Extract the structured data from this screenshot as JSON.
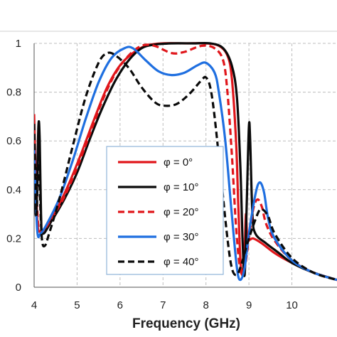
{
  "chart_data": {
    "type": "line",
    "title": "",
    "xlabel": "Frequency (GHz)",
    "ylabel": "",
    "xlim": [
      4,
      11.05
    ],
    "ylim": [
      0,
      1.0
    ],
    "xticks": [
      "4",
      "5",
      "6",
      "7",
      "8",
      "9",
      "10"
    ],
    "yticks": [
      "0",
      "0.2",
      "0.4",
      "0.6",
      "0.8",
      "1"
    ],
    "grid": true,
    "legend_placement": "center",
    "series": [
      {
        "name": "φ =  0°",
        "color": "#e0161b",
        "dash": "solid",
        "points": [
          [
            4.0,
            0.71
          ],
          [
            4.03,
            0.5
          ],
          [
            4.08,
            0.26
          ],
          [
            4.15,
            0.23
          ],
          [
            4.3,
            0.25
          ],
          [
            4.5,
            0.31
          ],
          [
            4.8,
            0.42
          ],
          [
            5.1,
            0.55
          ],
          [
            5.4,
            0.69
          ],
          [
            5.7,
            0.82
          ],
          [
            6.0,
            0.91
          ],
          [
            6.3,
            0.96
          ],
          [
            6.6,
            0.99
          ],
          [
            7.0,
            1.0
          ],
          [
            7.5,
            1.0
          ],
          [
            8.0,
            1.0
          ],
          [
            8.3,
            0.99
          ],
          [
            8.5,
            0.95
          ],
          [
            8.6,
            0.86
          ],
          [
            8.7,
            0.6
          ],
          [
            8.75,
            0.35
          ],
          [
            8.8,
            0.12
          ],
          [
            8.85,
            0.05
          ],
          [
            8.9,
            0.15
          ],
          [
            8.93,
            0.3
          ],
          [
            8.97,
            0.2
          ],
          [
            9.1,
            0.2
          ],
          [
            9.3,
            0.18
          ],
          [
            9.6,
            0.14
          ],
          [
            10.0,
            0.1
          ],
          [
            10.5,
            0.06
          ],
          [
            11.05,
            0.03
          ]
        ]
      },
      {
        "name": "φ = 10°",
        "color": "#0a0a0a",
        "dash": "solid",
        "points": [
          [
            4.0,
            0.42
          ],
          [
            4.05,
            0.3
          ],
          [
            4.1,
            0.66
          ],
          [
            4.13,
            0.6
          ],
          [
            4.16,
            0.3
          ],
          [
            4.2,
            0.22
          ],
          [
            4.4,
            0.27
          ],
          [
            4.7,
            0.36
          ],
          [
            5.0,
            0.47
          ],
          [
            5.3,
            0.61
          ],
          [
            5.6,
            0.74
          ],
          [
            5.9,
            0.85
          ],
          [
            6.2,
            0.93
          ],
          [
            6.5,
            0.98
          ],
          [
            6.8,
            0.995
          ],
          [
            7.2,
            1.0
          ],
          [
            7.7,
            1.0
          ],
          [
            8.1,
            1.0
          ],
          [
            8.4,
            0.98
          ],
          [
            8.6,
            0.91
          ],
          [
            8.72,
            0.78
          ],
          [
            8.8,
            0.5
          ],
          [
            8.85,
            0.2
          ],
          [
            8.9,
            0.05
          ],
          [
            8.95,
            0.35
          ],
          [
            9.0,
            0.66
          ],
          [
            9.03,
            0.6
          ],
          [
            9.08,
            0.3
          ],
          [
            9.15,
            0.22
          ],
          [
            9.4,
            0.18
          ],
          [
            9.7,
            0.14
          ],
          [
            10.0,
            0.1
          ],
          [
            10.5,
            0.06
          ],
          [
            11.05,
            0.03
          ]
        ]
      },
      {
        "name": "φ = 20°",
        "color": "#e0161b",
        "dash": "dashed",
        "points": [
          [
            4.0,
            0.6
          ],
          [
            4.05,
            0.42
          ],
          [
            4.1,
            0.25
          ],
          [
            4.2,
            0.23
          ],
          [
            4.4,
            0.28
          ],
          [
            4.7,
            0.37
          ],
          [
            5.0,
            0.49
          ],
          [
            5.3,
            0.63
          ],
          [
            5.6,
            0.77
          ],
          [
            5.9,
            0.88
          ],
          [
            6.2,
            0.95
          ],
          [
            6.5,
            0.99
          ],
          [
            6.8,
            0.99
          ],
          [
            7.2,
            0.96
          ],
          [
            7.5,
            0.965
          ],
          [
            7.9,
            0.99
          ],
          [
            8.2,
            0.98
          ],
          [
            8.4,
            0.93
          ],
          [
            8.5,
            0.8
          ],
          [
            8.6,
            0.55
          ],
          [
            8.7,
            0.25
          ],
          [
            8.8,
            0.07
          ],
          [
            8.9,
            0.08
          ],
          [
            9.0,
            0.2
          ],
          [
            9.1,
            0.32
          ],
          [
            9.2,
            0.36
          ],
          [
            9.3,
            0.33
          ],
          [
            9.4,
            0.26
          ],
          [
            9.6,
            0.19
          ],
          [
            10.0,
            0.11
          ],
          [
            10.5,
            0.06
          ],
          [
            11.05,
            0.03
          ]
        ]
      },
      {
        "name": "φ = 30°",
        "color": "#1f6fe0",
        "dash": "solid",
        "points": [
          [
            4.0,
            0.58
          ],
          [
            4.03,
            0.4
          ],
          [
            4.08,
            0.22
          ],
          [
            4.15,
            0.22
          ],
          [
            4.3,
            0.26
          ],
          [
            4.6,
            0.37
          ],
          [
            4.9,
            0.52
          ],
          [
            5.2,
            0.69
          ],
          [
            5.5,
            0.84
          ],
          [
            5.8,
            0.94
          ],
          [
            6.1,
            0.98
          ],
          [
            6.3,
            0.98
          ],
          [
            6.6,
            0.93
          ],
          [
            6.9,
            0.885
          ],
          [
            7.2,
            0.87
          ],
          [
            7.5,
            0.88
          ],
          [
            7.8,
            0.91
          ],
          [
            8.0,
            0.92
          ],
          [
            8.2,
            0.88
          ],
          [
            8.3,
            0.8
          ],
          [
            8.45,
            0.6
          ],
          [
            8.6,
            0.3
          ],
          [
            8.72,
            0.08
          ],
          [
            8.8,
            0.03
          ],
          [
            8.9,
            0.08
          ],
          [
            9.0,
            0.22
          ],
          [
            9.15,
            0.38
          ],
          [
            9.25,
            0.43
          ],
          [
            9.35,
            0.39
          ],
          [
            9.45,
            0.28
          ],
          [
            9.6,
            0.2
          ],
          [
            10.0,
            0.11
          ],
          [
            10.5,
            0.06
          ],
          [
            11.05,
            0.03
          ]
        ]
      },
      {
        "name": "φ = 40°",
        "color": "#0a0a0a",
        "dash": "dashed",
        "points": [
          [
            4.0,
            0.67
          ],
          [
            4.03,
            0.45
          ],
          [
            4.06,
            0.3
          ],
          [
            4.1,
            0.6
          ],
          [
            4.13,
            0.4
          ],
          [
            4.18,
            0.2
          ],
          [
            4.25,
            0.17
          ],
          [
            4.35,
            0.22
          ],
          [
            4.6,
            0.37
          ],
          [
            4.9,
            0.58
          ],
          [
            5.2,
            0.78
          ],
          [
            5.5,
            0.92
          ],
          [
            5.7,
            0.96
          ],
          [
            5.9,
            0.95
          ],
          [
            6.2,
            0.9
          ],
          [
            6.5,
            0.82
          ],
          [
            6.8,
            0.76
          ],
          [
            7.0,
            0.745
          ],
          [
            7.3,
            0.75
          ],
          [
            7.6,
            0.79
          ],
          [
            7.9,
            0.85
          ],
          [
            8.0,
            0.86
          ],
          [
            8.1,
            0.82
          ],
          [
            8.2,
            0.7
          ],
          [
            8.35,
            0.45
          ],
          [
            8.5,
            0.2
          ],
          [
            8.6,
            0.08
          ],
          [
            8.7,
            0.05
          ],
          [
            8.8,
            0.08
          ],
          [
            9.0,
            0.2
          ],
          [
            9.2,
            0.3
          ],
          [
            9.3,
            0.32
          ],
          [
            9.45,
            0.29
          ],
          [
            9.6,
            0.22
          ],
          [
            10.0,
            0.12
          ],
          [
            10.5,
            0.06
          ],
          [
            11.05,
            0.03
          ]
        ]
      }
    ]
  }
}
